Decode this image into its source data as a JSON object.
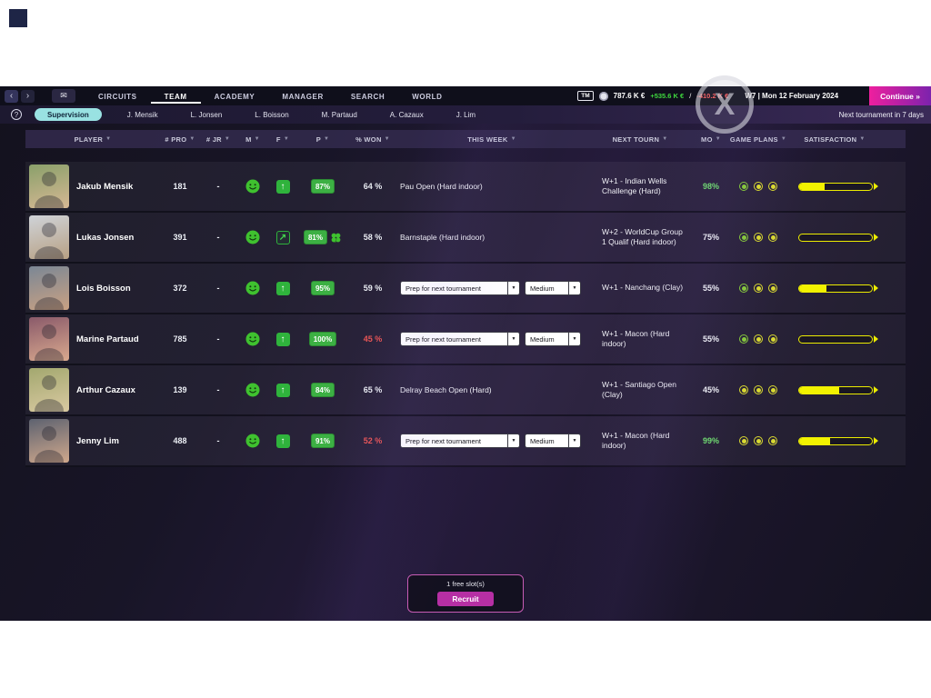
{
  "topnav": {
    "back_icon": "‹",
    "forward_icon": "›",
    "mail_icon": "✉",
    "menu": [
      {
        "label": "CIRCUITS",
        "active": false
      },
      {
        "label": "TEAM",
        "active": true
      },
      {
        "label": "ACADEMY",
        "active": false
      },
      {
        "label": "MANAGER",
        "active": false
      },
      {
        "label": "SEARCH",
        "active": false
      },
      {
        "label": "WORLD",
        "active": false
      }
    ],
    "tm_badge": "TM",
    "balance": "787.6 K €",
    "income": "+535.6 K €",
    "separator": "/",
    "expense": "-410.2 K €",
    "date": "W7 | Mon 12 February 2024",
    "continue_label": "Continue »"
  },
  "subnav": {
    "help_icon": "?",
    "supervision_label": "Supervision",
    "tabs": [
      "J. Mensik",
      "L. Jonsen",
      "L. Boisson",
      "M. Partaud",
      "A. Cazaux",
      "J. Lim"
    ],
    "next_tournament": "Next tournament in 7 days"
  },
  "watermark": "X",
  "table": {
    "columns": [
      "PLAYER",
      "# PRO",
      "# JR",
      "M",
      "F",
      "P",
      "% WON",
      "THIS WEEK",
      "NEXT TOURN",
      "MO",
      "GAME PLANS",
      "SATISFACTION"
    ],
    "rows": [
      {
        "name": "Jakub Mensik",
        "pro": "181",
        "jr": "-",
        "mood": "happy",
        "form": "up",
        "p": "87%",
        "clover": false,
        "won": "64 %",
        "won_red": false,
        "week_type": "text",
        "week_text": "Pau Open (Hard indoor)",
        "week_dd1": "",
        "week_dd2": "",
        "next": "W+1 - Indian Wells Challenge (Hard)",
        "mo": "98%",
        "mo_green": true,
        "plans": [
          "green",
          "yellow",
          "yellow"
        ],
        "satisfaction": 35,
        "avatar": [
          "#8aa06a",
          "#d6b894"
        ]
      },
      {
        "name": "Lukas Jonsen",
        "pro": "391",
        "jr": "-",
        "mood": "happy",
        "form": "upright",
        "p": "81%",
        "clover": true,
        "won": "58 %",
        "won_red": false,
        "week_type": "text",
        "week_text": "Barnstaple (Hard indoor)",
        "week_dd1": "",
        "week_dd2": "",
        "next": "W+2 - WorldCup Group 1 Qualif (Hard indoor)",
        "mo": "75%",
        "mo_green": false,
        "plans": [
          "green",
          "yellow",
          "yellow"
        ],
        "satisfaction": 0,
        "avatar": [
          "#cfd3d8",
          "#b8a184"
        ]
      },
      {
        "name": "Lois Boisson",
        "pro": "372",
        "jr": "-",
        "mood": "happy",
        "form": "up",
        "p": "95%",
        "clover": false,
        "won": "59 %",
        "won_red": false,
        "week_type": "dropdown",
        "week_text": "",
        "week_dd1": "Prep for next tournament",
        "week_dd2": "Medium",
        "next": "W+1 - Nanchang (Clay)",
        "mo": "55%",
        "mo_green": false,
        "plans": [
          "green",
          "yellow",
          "yellow"
        ],
        "satisfaction": 38,
        "avatar": [
          "#7b8795",
          "#c9a183"
        ]
      },
      {
        "name": "Marine Partaud",
        "pro": "785",
        "jr": "-",
        "mood": "happy",
        "form": "up",
        "p": "100%",
        "clover": false,
        "won": "45 %",
        "won_red": true,
        "week_type": "dropdown",
        "week_text": "",
        "week_dd1": "Prep for next tournament",
        "week_dd2": "Medium",
        "next": "W+1 - Macon (Hard indoor)",
        "mo": "55%",
        "mo_green": false,
        "plans": [
          "green",
          "yellow",
          "yellow"
        ],
        "satisfaction": 0,
        "avatar": [
          "#8a5a6a",
          "#d9a98e"
        ]
      },
      {
        "name": "Arthur Cazaux",
        "pro": "139",
        "jr": "-",
        "mood": "happy",
        "form": "up",
        "p": "84%",
        "clover": false,
        "won": "65 %",
        "won_red": false,
        "week_type": "text",
        "week_text": "Delray Beach Open (Hard)",
        "week_dd1": "",
        "week_dd2": "",
        "next": "W+1 - Santiago Open (Clay)",
        "mo": "45%",
        "mo_green": false,
        "plans": [
          "yellow",
          "yellow",
          "yellow"
        ],
        "satisfaction": 55,
        "avatar": [
          "#a3a86f",
          "#d9c9a1"
        ]
      },
      {
        "name": "Jenny Lim",
        "pro": "488",
        "jr": "-",
        "mood": "happy",
        "form": "up",
        "p": "91%",
        "clover": false,
        "won": "52 %",
        "won_red": true,
        "week_type": "dropdown",
        "week_text": "",
        "week_dd1": "Prep for next tournament",
        "week_dd2": "Medium",
        "next": "W+1 - Macon (Hard indoor)",
        "mo": "99%",
        "mo_green": true,
        "plans": [
          "yellow",
          "yellow",
          "yellow"
        ],
        "satisfaction": 42,
        "avatar": [
          "#5d6270",
          "#d0a88c"
        ]
      }
    ]
  },
  "recruit": {
    "slots_label": "1 free slot(s)",
    "button_label": "Recruit"
  },
  "colors": {
    "accent_pink": "#ee1f9e",
    "green": "#3cb043",
    "red": "#e85555",
    "yellow": "#ecec00",
    "teal": "#99e2e2"
  }
}
